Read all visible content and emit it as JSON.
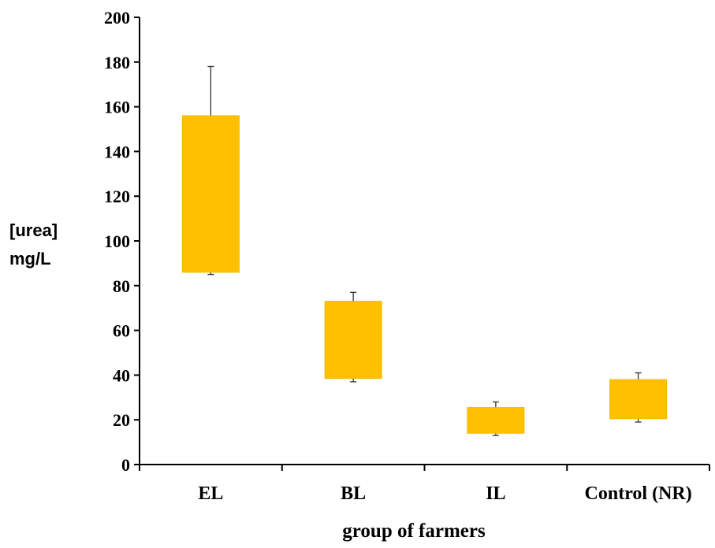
{
  "chart_data": {
    "type": "box",
    "categories": [
      "EL",
      "BL",
      "IL",
      "Control (NR)"
    ],
    "boxes": [
      {
        "category": "EL",
        "whisker_low": 85,
        "q1": 86,
        "q3": 156,
        "whisker_high": 178
      },
      {
        "category": "BL",
        "whisker_low": 37,
        "q1": 38.5,
        "q3": 73,
        "whisker_high": 77
      },
      {
        "category": "IL",
        "whisker_low": 13,
        "q1": 14,
        "q3": 25.5,
        "whisker_high": 28
      },
      {
        "category": "Control (NR)",
        "whisker_low": 19,
        "q1": 20.5,
        "q3": 38,
        "whisker_high": 41
      }
    ],
    "xlabel": "group of farmers",
    "ylabel_lines": [
      "[urea]",
      "mg/L"
    ],
    "ylim": [
      0,
      200
    ],
    "yticks": [
      0,
      20,
      40,
      60,
      80,
      100,
      120,
      140,
      160,
      180,
      200
    ],
    "box_color": "#FFC000",
    "box_edge_color": "#F2B800",
    "grid": false,
    "legend": "none"
  }
}
